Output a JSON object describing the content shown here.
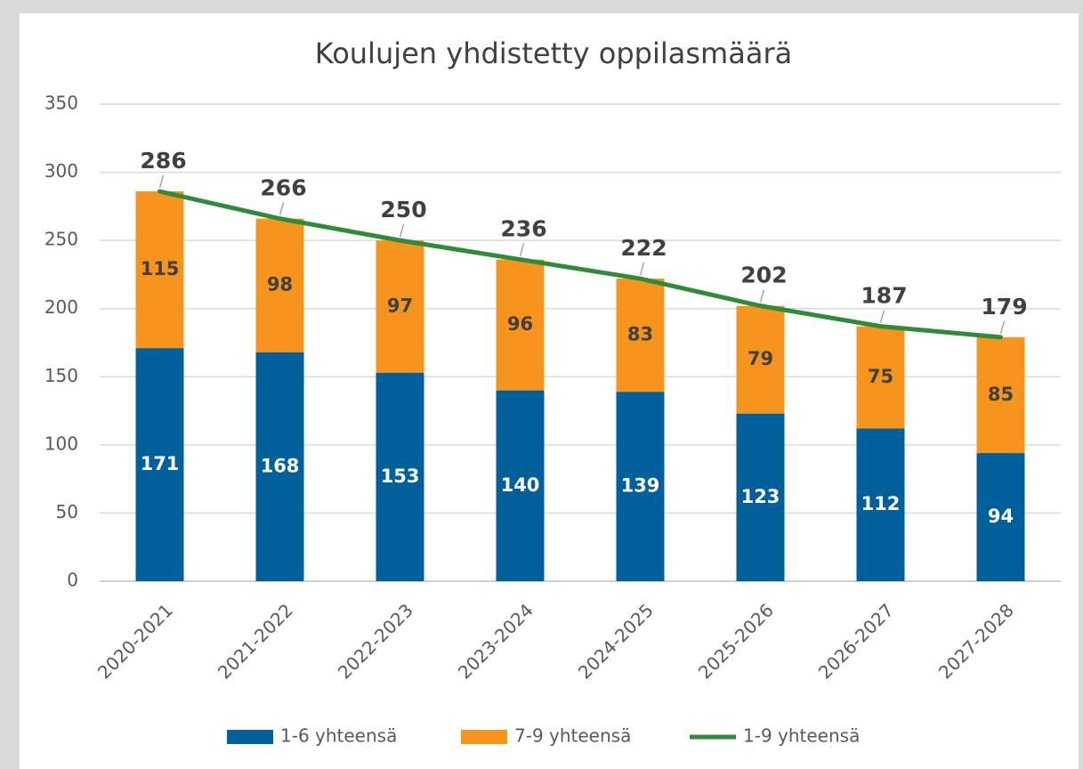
{
  "chart_data": {
    "type": "bar",
    "stacked": true,
    "title": "Koulujen yhdistetty oppilasmäärä",
    "categories": [
      "2020-2021",
      "2021-2022",
      "2022-2023",
      "2023-2024",
      "2024-2025",
      "2025-2026",
      "2026-2027",
      "2027-2028"
    ],
    "series": [
      {
        "name": "1-6 yhteensä",
        "color": "#00609c",
        "values": [
          171,
          168,
          153,
          140,
          139,
          123,
          112,
          94
        ]
      },
      {
        "name": "7-9 yhteensä",
        "color": "#f7941d",
        "values": [
          115,
          98,
          97,
          96,
          83,
          79,
          75,
          85
        ]
      },
      {
        "name": "1-9 yhteensä",
        "type": "line",
        "color": "#2e8b3a",
        "values": [
          286,
          266,
          250,
          236,
          222,
          202,
          187,
          179
        ]
      }
    ],
    "ylim": [
      0,
      350
    ],
    "yticks": [
      0,
      50,
      100,
      150,
      200,
      250,
      300,
      350
    ],
    "grid": true,
    "legend": "bottom"
  }
}
